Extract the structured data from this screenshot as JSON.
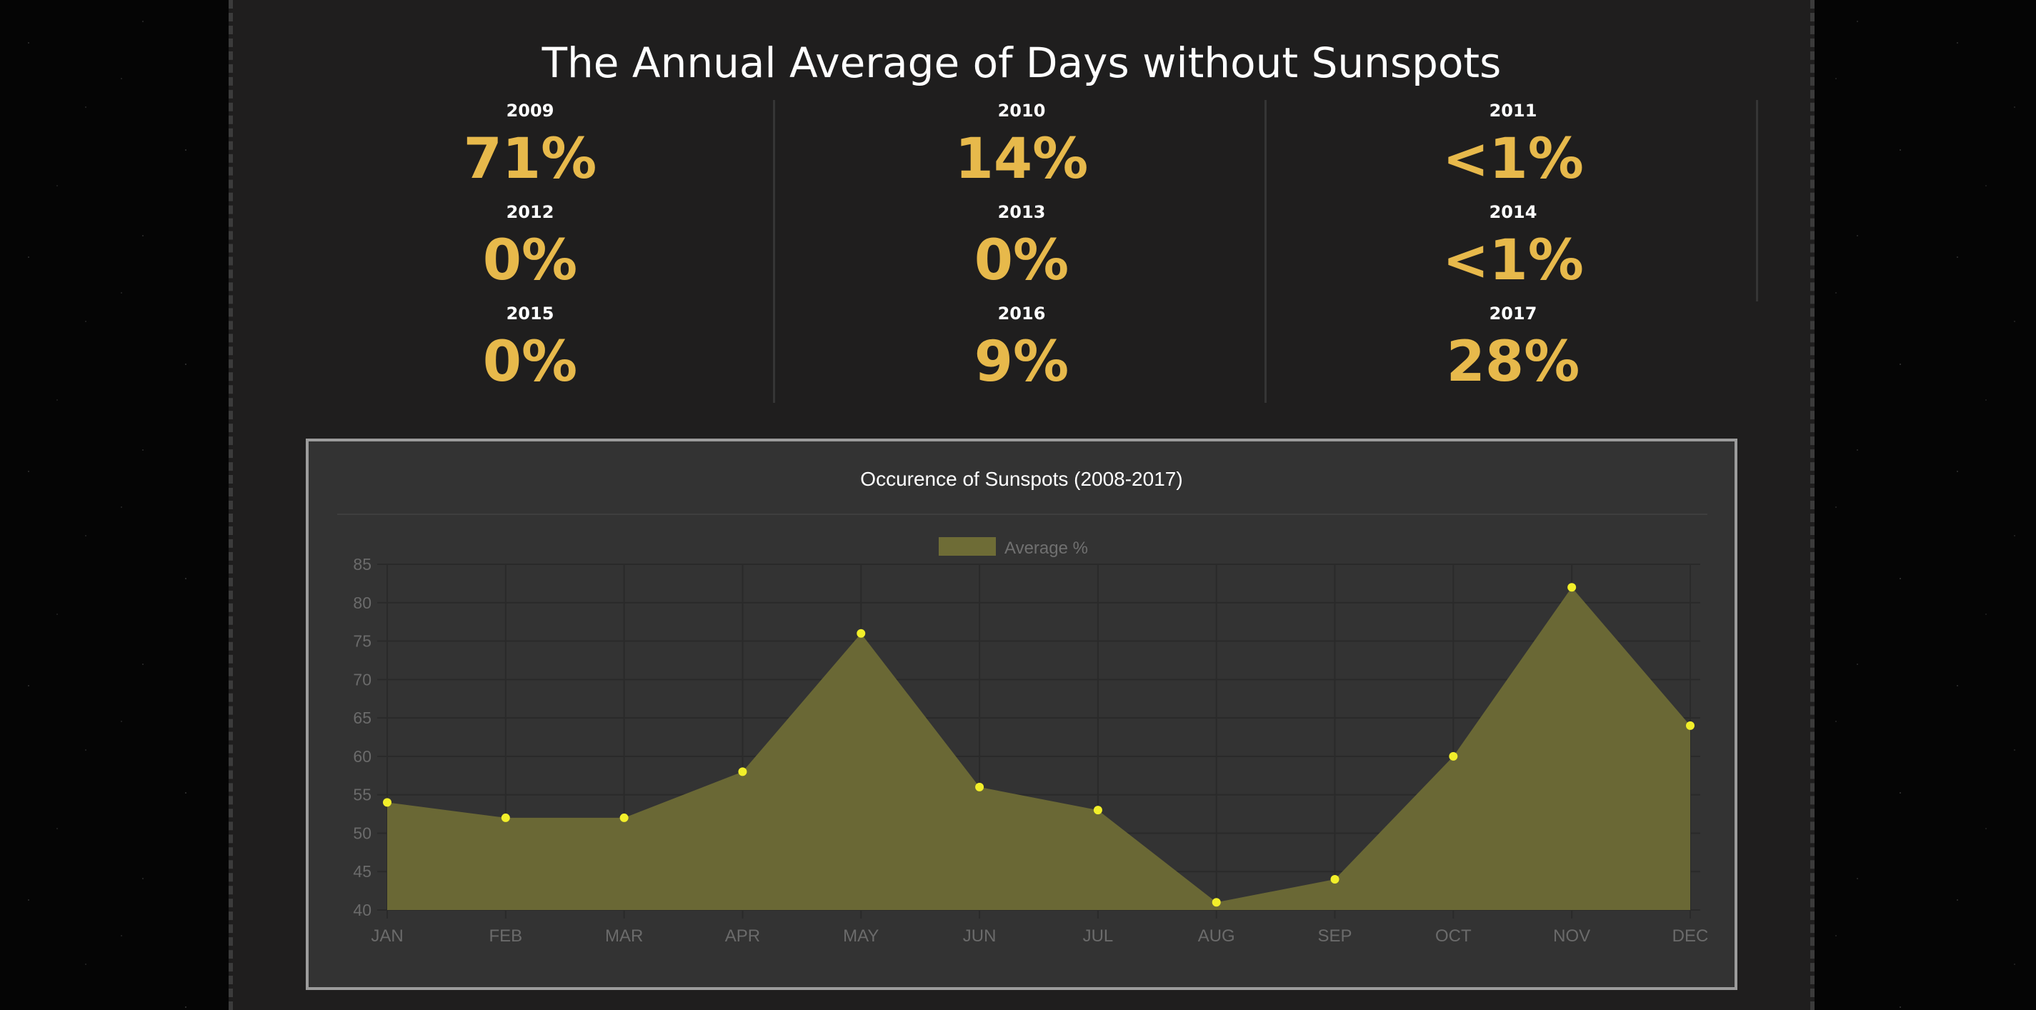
{
  "page": {
    "title": "The Annual Average of Days without Sunspots"
  },
  "stats": [
    {
      "year": "2009",
      "value": "71%"
    },
    {
      "year": "2010",
      "value": "14%"
    },
    {
      "year": "2011",
      "value": "<1%"
    },
    {
      "year": "2012",
      "value": "0%"
    },
    {
      "year": "2013",
      "value": "0%"
    },
    {
      "year": "2014",
      "value": "<1%"
    },
    {
      "year": "2015",
      "value": "0%"
    },
    {
      "year": "2016",
      "value": "9%"
    },
    {
      "year": "2017",
      "value": "28%"
    }
  ],
  "colors": {
    "accent": "#e7b94b",
    "area_fill": "#6e6c36",
    "point": "#f2ef2a",
    "panel": "#1f1e1e",
    "chart_background": "#333333"
  },
  "chart_data": {
    "type": "area",
    "title": "Occurence of Sunspots (2008-2017)",
    "categories": [
      "JAN",
      "FEB",
      "MAR",
      "APR",
      "MAY",
      "JUN",
      "JUL",
      "AUG",
      "SEP",
      "OCT",
      "NOV",
      "DEC"
    ],
    "series": [
      {
        "name": "Average %",
        "values": [
          54,
          52,
          52,
          58,
          76,
          56,
          53,
          41,
          44,
          60,
          82,
          64
        ]
      }
    ],
    "ylim": [
      40,
      85
    ],
    "yticks": [
      85,
      80,
      75,
      70,
      65,
      60,
      55,
      50,
      45,
      40
    ],
    "xlabel": "",
    "ylabel": "",
    "legend": "top-center",
    "grid": true
  }
}
